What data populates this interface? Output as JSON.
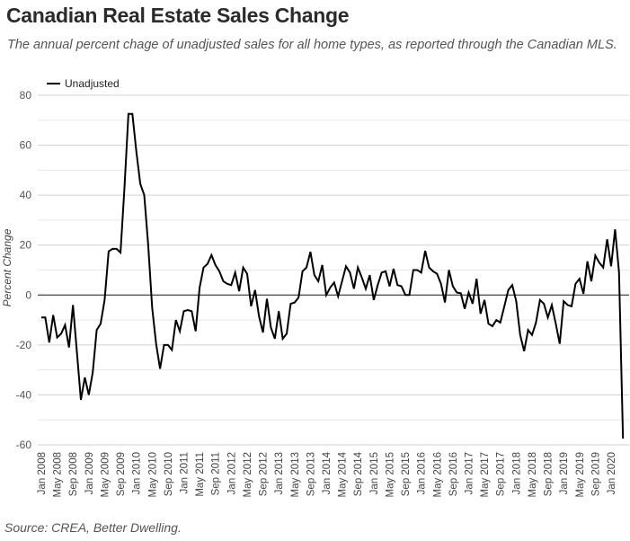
{
  "title": "Canadian Real Estate Sales Change",
  "subtitle": "The annual percent chage of unadjusted sales for all home types, as reported through the Canadian MLS.",
  "source": "Source: CREA, Better Dwelling.",
  "chart_data": {
    "type": "line",
    "title": "Canadian Real Estate Sales Change",
    "xlabel": "",
    "ylabel": "Percent Change",
    "ylim": [
      -60,
      80
    ],
    "yticks": [
      80,
      60,
      40,
      20,
      0,
      -20,
      -40,
      -60
    ],
    "grid": true,
    "legend": "top-left",
    "start": "Jan 2008",
    "xtick_labels": [
      "Jan 2008",
      "May 2008",
      "Sep 2008",
      "Jan 2009",
      "May 2009",
      "Sep 2009",
      "Jan 2010",
      "May 2010",
      "Sep 2010",
      "Jan 2011",
      "May 2011",
      "Sep 2011",
      "Jan 2012",
      "May 2012",
      "Sep 2012",
      "Jan 2013",
      "May 2013",
      "Sep 2013",
      "Jan 2014",
      "May 2014",
      "Sep 2014",
      "Jan 2015",
      "May 2015",
      "Sep 2015",
      "Jan 2016",
      "May 2016",
      "Sep 2016",
      "Jan 2017",
      "May 2017",
      "Sep 2017",
      "Jan 2018",
      "May 2018",
      "Sep 2018",
      "Jan 2019",
      "May 2019",
      "Sep 2019",
      "Jan 2020"
    ],
    "series": [
      {
        "name": "Unadjusted",
        "color": "#000000",
        "values": [
          -9,
          -9,
          -19,
          -8,
          -17,
          -15.5,
          -12,
          -21,
          -4,
          -23,
          -42,
          -33,
          -40,
          -31,
          -14,
          -11.5,
          -2,
          17.5,
          18.5,
          18.5,
          17,
          43,
          72.5,
          72.5,
          57.5,
          44.5,
          40,
          20,
          -5,
          -19.5,
          -29.5,
          -20,
          -20,
          -22,
          -10,
          -14.5,
          -6.5,
          -6,
          -6.5,
          -14.5,
          3,
          11,
          12.5,
          16,
          12,
          9.5,
          5.5,
          4.5,
          4,
          9,
          1.5,
          11,
          8.5,
          -4.5,
          2,
          -8.5,
          -15,
          -1.5,
          -13,
          -17.5,
          -6.5,
          -17.5,
          -15.5,
          -3.5,
          -3,
          -1,
          9.5,
          11,
          17.3,
          8,
          5.5,
          12,
          0,
          3,
          5,
          -0.5,
          5.5,
          11.5,
          9,
          2.5,
          11,
          7,
          2.5,
          8,
          -2,
          4,
          9,
          9.5,
          3.5,
          10.5,
          4,
          3.5,
          0,
          0,
          10,
          10,
          9,
          17.7,
          11,
          9.5,
          8.5,
          4.5,
          -3,
          10,
          3.5,
          1,
          0.7,
          -5.5,
          1,
          -3.5,
          6.5,
          -7.5,
          -2,
          -11.5,
          -12.5,
          -10,
          -11,
          -4.5,
          2,
          4,
          -2.5,
          -16,
          -22.5,
          -14,
          -16,
          -11,
          -2,
          -3.5,
          -9,
          -4,
          -11.5,
          -19.5,
          -2.5,
          -4,
          -4.5,
          4.5,
          6.5,
          0.5,
          13.5,
          5.5,
          15.8,
          13,
          11,
          22.3,
          11.5,
          26.3,
          9,
          -57.5
        ]
      }
    ]
  }
}
